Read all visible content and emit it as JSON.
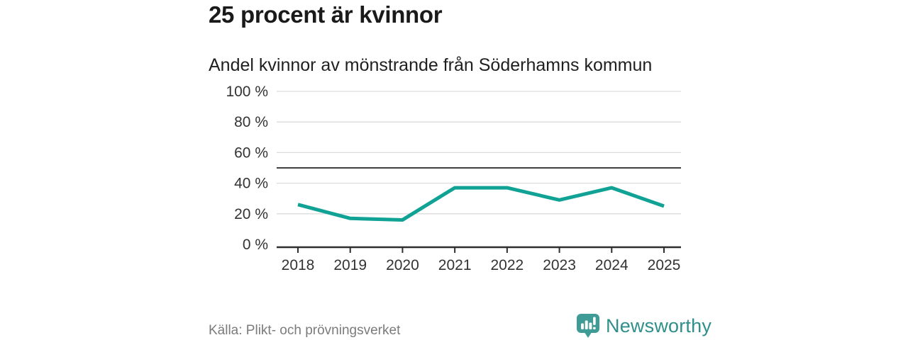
{
  "header": {
    "title": "25 procent är kvinnor",
    "subtitle": "Andel kvinnor av mönstrande från Söderhamns kommun"
  },
  "chart_data": {
    "type": "line",
    "categories": [
      "2018",
      "2019",
      "2020",
      "2021",
      "2022",
      "2023",
      "2024",
      "2025"
    ],
    "series": [
      {
        "name": "Andel kvinnor av mönstrande",
        "values": [
          26,
          17,
          16,
          37,
          37,
          29,
          37,
          25
        ]
      }
    ],
    "title": "25 procent är kvinnor",
    "subtitle": "Andel kvinnor av mönstrande från Söderhamns kommun",
    "xlabel": "",
    "ylabel": "",
    "ylim": [
      0,
      100
    ],
    "y_ticks": [
      0,
      20,
      40,
      60,
      80,
      100
    ],
    "y_tick_labels": [
      "0 %",
      "20 %",
      "40 %",
      "60 %",
      "80 %",
      "100 %"
    ],
    "reference_line": {
      "value": 50
    },
    "grid": true,
    "legend": "none",
    "colors": {
      "line": "#11a296",
      "grid": "#dcdcdc",
      "axis": "#2e2e2e",
      "reference": "#404040",
      "tick_label": "#333333"
    }
  },
  "footer": {
    "source": "Källa: Plikt- och prövningsverket",
    "brand": {
      "name": "Newsworthy",
      "badge_color": "#3f9b95",
      "wordmark_color": "#2f8f8a",
      "icon": "bar-chart-exclamation-speech-bubble"
    }
  }
}
